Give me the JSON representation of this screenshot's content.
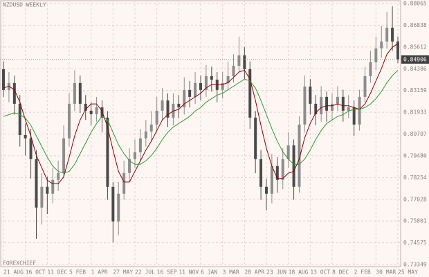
{
  "chart_data": {
    "type": "candlestick",
    "title": "NZDUSD WEEKLY",
    "watermark": "FOREXCHIEF",
    "x": [
      "21 AUG",
      null,
      null,
      null,
      "16 OCT",
      null,
      null,
      null,
      "11 DEC",
      null,
      null,
      null,
      "5 FEB",
      null,
      null,
      null,
      "1 APR",
      null,
      null,
      null,
      "27 MAY",
      null,
      null,
      null,
      "22 JUL",
      null,
      null,
      null,
      "16 SEP",
      null,
      null,
      null,
      "11 NOV",
      null,
      null,
      null,
      "6 JAN",
      null,
      null,
      null,
      "3 MAR",
      null,
      null,
      null,
      "28 APR",
      null,
      null,
      null,
      "23 JUN",
      null,
      null,
      null,
      "18 AUG",
      null,
      null,
      null,
      "13 OCT",
      null,
      null,
      null,
      "8 DEC",
      null,
      null,
      null,
      "2 FEB",
      null,
      null,
      null,
      "30 MAR",
      null,
      null,
      null,
      "25 MAY"
    ],
    "open": [
      0.8436,
      0.8319,
      0.8358,
      0.8241,
      0.8065,
      0.8046,
      0.7929,
      0.7656,
      0.7773,
      0.7734,
      0.7812,
      0.7851,
      0.8046,
      0.8241,
      0.8358,
      0.8241,
      0.8202,
      0.8182,
      0.8221,
      0.8163,
      0.7773,
      0.7578,
      0.7734,
      0.7851,
      0.7929,
      0.7968,
      0.8046,
      0.8085,
      0.8124,
      0.8202,
      0.826,
      0.8163,
      0.8241,
      0.8221,
      0.8319,
      0.828,
      0.8358,
      0.8319,
      0.8397,
      0.8377,
      0.8319,
      0.8358,
      0.8397,
      0.8455,
      0.8514,
      0.8436,
      0.8163,
      0.7929,
      0.7773,
      0.7734,
      0.789,
      0.7812,
      0.7929,
      0.8007,
      0.7773,
      0.8124,
      0.8338,
      0.8241,
      0.8182,
      0.828,
      0.8202,
      0.8241,
      0.828,
      0.8202,
      0.8221,
      0.8124,
      0.828,
      0.8397,
      0.8475,
      0.8553,
      0.8592,
      0.867,
      0.8592
    ],
    "high": [
      0.848,
      0.842,
      0.84,
      0.829,
      0.813,
      0.81,
      0.798,
      0.785,
      0.783,
      0.788,
      0.792,
      0.812,
      0.83,
      0.843,
      0.84,
      0.829,
      0.825,
      0.828,
      0.826,
      0.82,
      0.78,
      0.78,
      0.792,
      0.799,
      0.804,
      0.81,
      0.815,
      0.82,
      0.828,
      0.833,
      0.83,
      0.83,
      0.829,
      0.839,
      0.837,
      0.842,
      0.84,
      0.846,
      0.845,
      0.842,
      0.842,
      0.848,
      0.852,
      0.862,
      0.856,
      0.848,
      0.82,
      0.798,
      0.782,
      0.796,
      0.794,
      0.799,
      0.808,
      0.804,
      0.817,
      0.84,
      0.838,
      0.829,
      0.834,
      0.831,
      0.83,
      0.834,
      0.832,
      0.829,
      0.826,
      0.832,
      0.845,
      0.854,
      0.862,
      0.868,
      0.876,
      0.879,
      0.862
    ],
    "low": [
      0.828,
      0.825,
      0.818,
      0.8,
      0.795,
      0.782,
      0.748,
      0.756,
      0.762,
      0.768,
      0.775,
      0.782,
      0.8,
      0.82,
      0.819,
      0.815,
      0.812,
      0.814,
      0.808,
      0.77,
      0.746,
      0.75,
      0.77,
      0.78,
      0.788,
      0.792,
      0.8,
      0.803,
      0.808,
      0.815,
      0.811,
      0.812,
      0.816,
      0.818,
      0.822,
      0.824,
      0.826,
      0.828,
      0.831,
      0.825,
      0.827,
      0.832,
      0.836,
      0.842,
      0.838,
      0.81,
      0.785,
      0.77,
      0.764,
      0.768,
      0.774,
      0.776,
      0.788,
      0.77,
      0.774,
      0.808,
      0.818,
      0.812,
      0.814,
      0.814,
      0.815,
      0.82,
      0.814,
      0.816,
      0.806,
      0.809,
      0.825,
      0.836,
      0.843,
      0.85,
      0.855,
      0.854,
      0.847
    ],
    "close": [
      0.8319,
      0.8358,
      0.8241,
      0.8065,
      0.8046,
      0.7929,
      0.7656,
      0.7773,
      0.7734,
      0.7812,
      0.7851,
      0.8046,
      0.8241,
      0.8358,
      0.8241,
      0.8202,
      0.8182,
      0.8221,
      0.8163,
      0.7773,
      0.7578,
      0.7734,
      0.7851,
      0.7929,
      0.7968,
      0.8046,
      0.8085,
      0.8124,
      0.8202,
      0.826,
      0.8163,
      0.8241,
      0.8221,
      0.8319,
      0.828,
      0.8358,
      0.8319,
      0.8397,
      0.8377,
      0.8319,
      0.8358,
      0.8397,
      0.8455,
      0.8514,
      0.8436,
      0.8163,
      0.7929,
      0.7773,
      0.7734,
      0.789,
      0.7812,
      0.7929,
      0.8007,
      0.7773,
      0.8124,
      0.8338,
      0.8241,
      0.8182,
      0.828,
      0.8202,
      0.8241,
      0.828,
      0.8202,
      0.8221,
      0.8124,
      0.828,
      0.8397,
      0.8475,
      0.8553,
      0.8592,
      0.867,
      0.8592,
      0.8491
    ],
    "moving_averages": [
      {
        "color": "#8b0000",
        "values": [
          0.833,
          0.834,
          0.832,
          0.825,
          0.815,
          0.806,
          0.795,
          0.788,
          0.781,
          0.779,
          0.779,
          0.783,
          0.794,
          0.806,
          0.815,
          0.821,
          0.824,
          0.824,
          0.82,
          0.811,
          0.798,
          0.786,
          0.78,
          0.78,
          0.786,
          0.792,
          0.798,
          0.803,
          0.809,
          0.815,
          0.818,
          0.82,
          0.821,
          0.824,
          0.826,
          0.828,
          0.83,
          0.833,
          0.835,
          0.835,
          0.835,
          0.836,
          0.839,
          0.842,
          0.843,
          0.838,
          0.826,
          0.812,
          0.799,
          0.789,
          0.782,
          0.782,
          0.785,
          0.786,
          0.793,
          0.805,
          0.813,
          0.819,
          0.822,
          0.823,
          0.823,
          0.824,
          0.823,
          0.823,
          0.822,
          0.821,
          0.824,
          0.83,
          0.837,
          0.844,
          0.852,
          0.856,
          0.858
        ]
      },
      {
        "color": "#2e9a2e",
        "values": [
          0.817,
          0.818,
          0.819,
          0.818,
          0.816,
          0.812,
          0.806,
          0.8,
          0.794,
          0.789,
          0.786,
          0.785,
          0.786,
          0.79,
          0.796,
          0.802,
          0.808,
          0.813,
          0.817,
          0.815,
          0.808,
          0.801,
          0.796,
          0.792,
          0.79,
          0.79,
          0.792,
          0.795,
          0.799,
          0.804,
          0.808,
          0.811,
          0.813,
          0.815,
          0.817,
          0.82,
          0.822,
          0.825,
          0.827,
          0.829,
          0.83,
          0.832,
          0.834,
          0.836,
          0.838,
          0.837,
          0.833,
          0.826,
          0.818,
          0.81,
          0.803,
          0.797,
          0.793,
          0.79,
          0.79,
          0.793,
          0.798,
          0.804,
          0.809,
          0.813,
          0.815,
          0.817,
          0.818,
          0.82,
          0.821,
          0.821,
          0.822,
          0.824,
          0.827,
          0.831,
          0.836,
          0.84,
          0.843
        ]
      }
    ],
    "last_price": 0.84906,
    "ylim": [
      0.73349,
      0.88065
    ],
    "yticks": [
      0.73349,
      0.74575,
      0.75801,
      0.77028,
      0.78254,
      {
        "value": 0.7948,
        "label": "0.79480"
      },
      0.80707,
      0.81933,
      0.83159,
      0.84386,
      0.85612,
      0.86838,
      0.88065
    ],
    "grid": true,
    "bull_color": "#8c8c8c",
    "bear_color": "#4a4a4a"
  }
}
